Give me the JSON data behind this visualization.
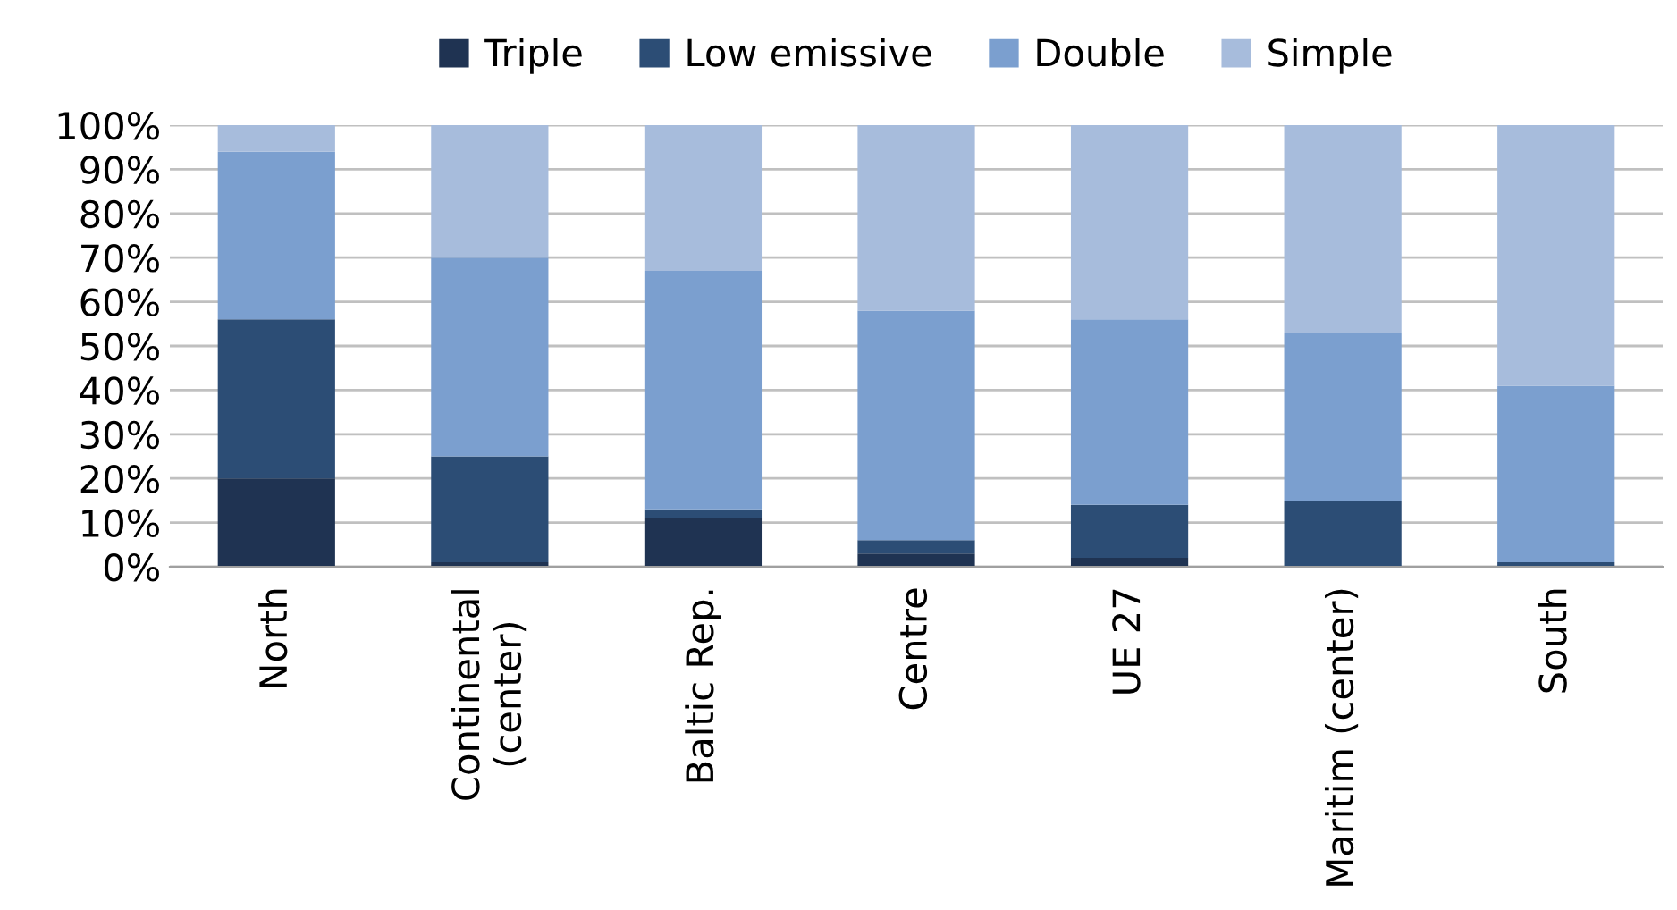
{
  "chart_data": {
    "type": "bar",
    "stacked": true,
    "categories": [
      "North",
      "Continental\n(center)",
      "Baltic Rep.",
      "Centre",
      "UE 27",
      "Maritim (center)",
      "South"
    ],
    "series": [
      {
        "name": "Triple",
        "color": "#1f3352",
        "values": [
          20,
          1,
          11,
          3,
          2,
          0,
          0
        ]
      },
      {
        "name": "Low emissive",
        "color": "#2c4d75",
        "values": [
          36,
          24,
          2,
          3,
          12,
          15,
          1
        ]
      },
      {
        "name": "Double",
        "color": "#7b9fcf",
        "values": [
          38,
          45,
          54,
          52,
          42,
          38,
          40
        ]
      },
      {
        "name": "Simple",
        "color": "#a7bcdc",
        "values": [
          6,
          30,
          33,
          42,
          44,
          47,
          59
        ]
      }
    ],
    "ylim": [
      0,
      100
    ],
    "yticks": [
      {
        "value": 0,
        "label": "0%"
      },
      {
        "value": 10,
        "label": "10%"
      },
      {
        "value": 20,
        "label": "20%"
      },
      {
        "value": 30,
        "label": "30%"
      },
      {
        "value": 40,
        "label": "40%"
      },
      {
        "value": 50,
        "label": "50%"
      },
      {
        "value": 60,
        "label": "60%"
      },
      {
        "value": 70,
        "label": "70%"
      },
      {
        "value": 80,
        "label": "80%"
      },
      {
        "value": 90,
        "label": "90%"
      },
      {
        "value": 100,
        "label": "100%"
      }
    ],
    "grid": "y",
    "legend": "top"
  }
}
